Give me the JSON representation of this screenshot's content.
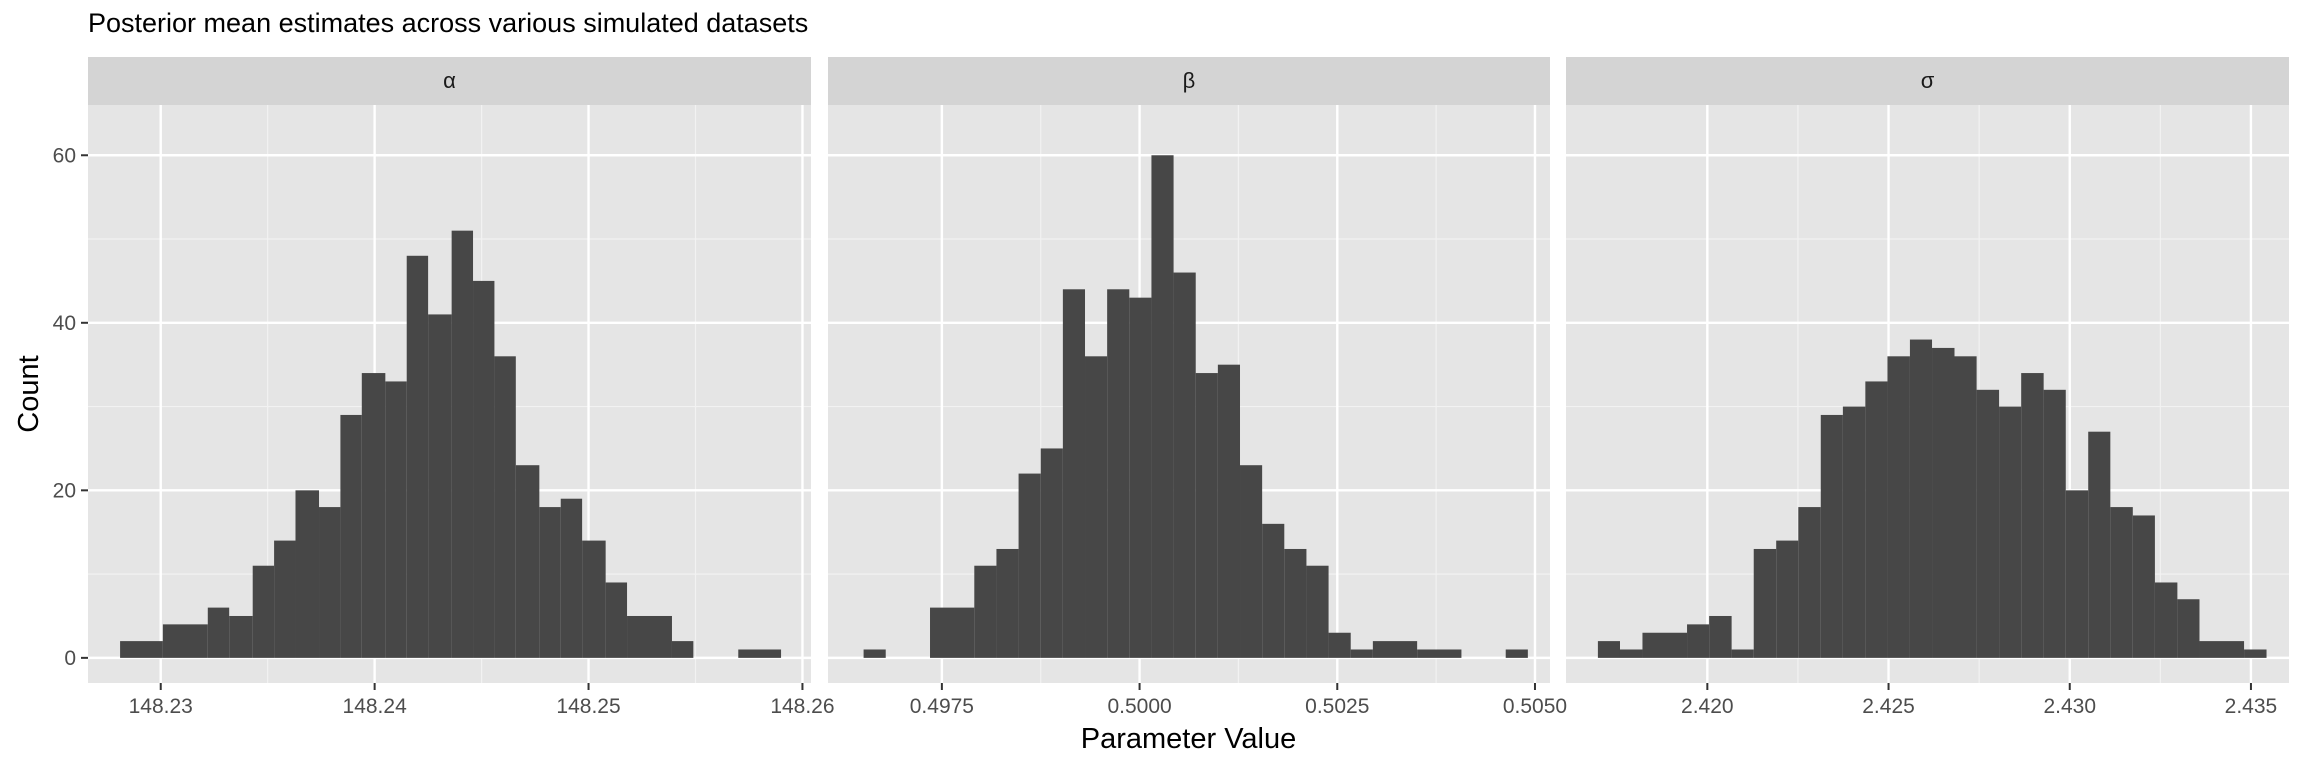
{
  "chart_data": {
    "type": "bar",
    "title": "Posterior mean estimates across various simulated datasets",
    "xlabel": "Parameter Value",
    "ylabel": "Count",
    "ylim": [
      -3,
      66
    ],
    "y_ticks": [
      0,
      20,
      40,
      60
    ],
    "y_tick_labels": [
      "0",
      "20",
      "40",
      "60"
    ],
    "grid": true,
    "panel_background": "#e5e5e5",
    "strip_background": "#d4d4d4",
    "bar_color": "#474747",
    "panels": [
      {
        "label": "α",
        "xlim": [
          148.2266,
          148.2604
        ],
        "x_ticks": [
          148.23,
          148.24,
          148.25,
          148.26
        ],
        "x_tick_labels": [
          "148.23",
          "148.24",
          "148.25",
          "148.26"
        ],
        "bins": [
          {
            "x0": 148.2281,
            "x1": 148.2301,
            "count": 2
          },
          {
            "x0": 148.2301,
            "x1": 148.2322,
            "count": 4
          },
          {
            "x0": 148.2322,
            "x1": 148.2332,
            "count": 6
          },
          {
            "x0": 148.2332,
            "x1": 148.2343,
            "count": 5
          },
          {
            "x0": 148.2343,
            "x1": 148.2353,
            "count": 11
          },
          {
            "x0": 148.2353,
            "x1": 148.2363,
            "count": 14
          },
          {
            "x0": 148.2363,
            "x1": 148.2374,
            "count": 20
          },
          {
            "x0": 148.2374,
            "x1": 148.2384,
            "count": 18
          },
          {
            "x0": 148.2384,
            "x1": 148.2394,
            "count": 29
          },
          {
            "x0": 148.2394,
            "x1": 148.2405,
            "count": 34
          },
          {
            "x0": 148.2405,
            "x1": 148.2415,
            "count": 33
          },
          {
            "x0": 148.2415,
            "x1": 148.2425,
            "count": 48
          },
          {
            "x0": 148.2425,
            "x1": 148.2436,
            "count": 41
          },
          {
            "x0": 148.2436,
            "x1": 148.2446,
            "count": 51
          },
          {
            "x0": 148.2446,
            "x1": 148.2456,
            "count": 45
          },
          {
            "x0": 148.2456,
            "x1": 148.2466,
            "count": 36
          },
          {
            "x0": 148.2466,
            "x1": 148.2477,
            "count": 23
          },
          {
            "x0": 148.2477,
            "x1": 148.2487,
            "count": 18
          },
          {
            "x0": 148.2487,
            "x1": 148.2497,
            "count": 19
          },
          {
            "x0": 148.2497,
            "x1": 148.2508,
            "count": 14
          },
          {
            "x0": 148.2508,
            "x1": 148.2518,
            "count": 9
          },
          {
            "x0": 148.2518,
            "x1": 148.2539,
            "count": 5
          },
          {
            "x0": 148.2539,
            "x1": 148.2549,
            "count": 2
          },
          {
            "x0": 148.257,
            "x1": 148.259,
            "count": 1
          }
        ]
      },
      {
        "label": "β",
        "xlim": [
          0.49606,
          0.50519
        ],
        "x_ticks": [
          0.4975,
          0.5,
          0.5025,
          0.505
        ],
        "x_tick_labels": [
          "0.4975",
          "0.5000",
          "0.5025",
          "0.5050"
        ],
        "bins": [
          {
            "x0": 0.49651,
            "x1": 0.49679,
            "count": 1
          },
          {
            "x0": 0.49735,
            "x1": 0.49791,
            "count": 6
          },
          {
            "x0": 0.49791,
            "x1": 0.49819,
            "count": 11
          },
          {
            "x0": 0.49819,
            "x1": 0.49847,
            "count": 13
          },
          {
            "x0": 0.49847,
            "x1": 0.49875,
            "count": 22
          },
          {
            "x0": 0.49875,
            "x1": 0.49903,
            "count": 25
          },
          {
            "x0": 0.49903,
            "x1": 0.49931,
            "count": 44
          },
          {
            "x0": 0.49931,
            "x1": 0.49959,
            "count": 36
          },
          {
            "x0": 0.49959,
            "x1": 0.49987,
            "count": 44
          },
          {
            "x0": 0.49987,
            "x1": 0.50015,
            "count": 43
          },
          {
            "x0": 0.50015,
            "x1": 0.50043,
            "count": 60
          },
          {
            "x0": 0.50043,
            "x1": 0.50071,
            "count": 46
          },
          {
            "x0": 0.50071,
            "x1": 0.50099,
            "count": 34
          },
          {
            "x0": 0.50099,
            "x1": 0.50127,
            "count": 35
          },
          {
            "x0": 0.50127,
            "x1": 0.50155,
            "count": 23
          },
          {
            "x0": 0.50155,
            "x1": 0.50183,
            "count": 16
          },
          {
            "x0": 0.50183,
            "x1": 0.50211,
            "count": 13
          },
          {
            "x0": 0.50211,
            "x1": 0.50239,
            "count": 11
          },
          {
            "x0": 0.50239,
            "x1": 0.50267,
            "count": 3
          },
          {
            "x0": 0.50267,
            "x1": 0.50295,
            "count": 1
          },
          {
            "x0": 0.50295,
            "x1": 0.50351,
            "count": 2
          },
          {
            "x0": 0.50351,
            "x1": 0.50407,
            "count": 1
          },
          {
            "x0": 0.50463,
            "x1": 0.50491,
            "count": 1
          }
        ]
      },
      {
        "label": "σ",
        "xlim": [
          2.4161,
          2.43605
        ],
        "x_ticks": [
          2.42,
          2.425,
          2.43,
          2.435
        ],
        "x_tick_labels": [
          "2.420",
          "2.425",
          "2.430",
          "2.435"
        ],
        "bins": [
          {
            "x0": 2.41698,
            "x1": 2.41759,
            "count": 2
          },
          {
            "x0": 2.41759,
            "x1": 2.41821,
            "count": 1
          },
          {
            "x0": 2.41821,
            "x1": 2.41944,
            "count": 3
          },
          {
            "x0": 2.41944,
            "x1": 2.42005,
            "count": 4
          },
          {
            "x0": 2.42005,
            "x1": 2.42067,
            "count": 5
          },
          {
            "x0": 2.42067,
            "x1": 2.42128,
            "count": 1
          },
          {
            "x0": 2.42128,
            "x1": 2.4219,
            "count": 13
          },
          {
            "x0": 2.4219,
            "x1": 2.42251,
            "count": 14
          },
          {
            "x0": 2.42251,
            "x1": 2.42313,
            "count": 18
          },
          {
            "x0": 2.42313,
            "x1": 2.42374,
            "count": 29
          },
          {
            "x0": 2.42374,
            "x1": 2.42436,
            "count": 30
          },
          {
            "x0": 2.42436,
            "x1": 2.42497,
            "count": 33
          },
          {
            "x0": 2.42497,
            "x1": 2.42559,
            "count": 36
          },
          {
            "x0": 2.42559,
            "x1": 2.4262,
            "count": 38
          },
          {
            "x0": 2.4262,
            "x1": 2.42682,
            "count": 37
          },
          {
            "x0": 2.42682,
            "x1": 2.42743,
            "count": 36
          },
          {
            "x0": 2.42743,
            "x1": 2.42805,
            "count": 32
          },
          {
            "x0": 2.42805,
            "x1": 2.42866,
            "count": 30
          },
          {
            "x0": 2.42866,
            "x1": 2.42928,
            "count": 34
          },
          {
            "x0": 2.42928,
            "x1": 2.42989,
            "count": 32
          },
          {
            "x0": 2.42989,
            "x1": 2.43051,
            "count": 20
          },
          {
            "x0": 2.43051,
            "x1": 2.43112,
            "count": 27
          },
          {
            "x0": 2.43112,
            "x1": 2.43174,
            "count": 18
          },
          {
            "x0": 2.43174,
            "x1": 2.43235,
            "count": 17
          },
          {
            "x0": 2.43235,
            "x1": 2.43297,
            "count": 9
          },
          {
            "x0": 2.43297,
            "x1": 2.43358,
            "count": 7
          },
          {
            "x0": 2.43358,
            "x1": 2.43481,
            "count": 2
          },
          {
            "x0": 2.43481,
            "x1": 2.43543,
            "count": 1
          }
        ]
      }
    ]
  }
}
